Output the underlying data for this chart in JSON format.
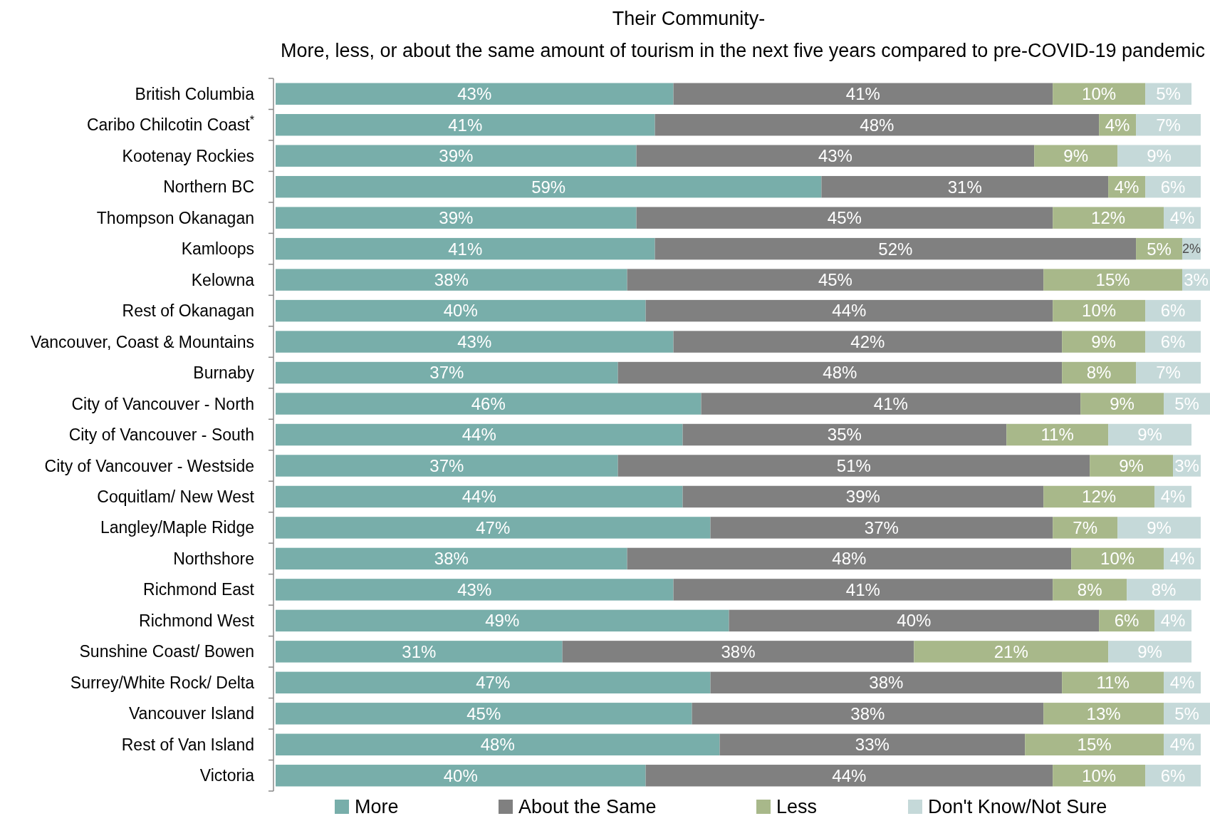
{
  "chart_data": {
    "type": "bar",
    "orientation": "horizontal",
    "stacked": true,
    "legend": "bottom",
    "title": "Their Community-",
    "subtitle": "More, less, or about the same amount of tourism in the next five years compared to pre-COVID-19 pandemic",
    "categories": [
      "British Columbia",
      "Caribo Chilcotin Coast$^{*}$",
      "Kootenay Rockies",
      "Northern BC",
      "Thompson Okanagan",
      "Kamloops",
      "Kelowna",
      "Rest of Okanagan",
      "Vancouver, Coast & Mountains",
      "Burnaby",
      "City of Vancouver - North",
      "City of Vancouver - South",
      "City of Vancouver - Westside",
      "Coquitlam/ New West",
      "Langley/Maple Ridge",
      "Northshore",
      "Richmond East",
      "Richmond West",
      "Sunshine Coast/ Bowen",
      "Surrey/White Rock/ Delta",
      "Vancouver Island",
      "Rest of Van Island",
      "Victoria"
    ],
    "series": [
      {
        "name": "More",
        "color": "#78aeaa",
        "values": [
          43,
          41,
          39,
          59,
          39,
          41,
          38,
          40,
          43,
          37,
          46,
          44,
          37,
          44,
          47,
          38,
          43,
          49,
          31,
          47,
          45,
          48,
          40
        ],
        "value_labels": [
          "43%",
          "41%",
          "39%",
          "59%",
          "39%",
          "41%",
          "38%",
          "40%",
          "43%",
          "37%",
          "46%",
          "44%",
          "37%",
          "44%",
          "47%",
          "38%",
          "43%",
          "49%",
          "31%",
          "47%",
          "45%",
          "48%",
          "40%"
        ]
      },
      {
        "name": "About the Same",
        "color": "#808080",
        "values": [
          41,
          48,
          43,
          31,
          45,
          52,
          45,
          44,
          42,
          48,
          41,
          35,
          51,
          39,
          37,
          48,
          41,
          40,
          38,
          38,
          38,
          33,
          44
        ],
        "value_labels": [
          "41%",
          "48%",
          "43%",
          "31%",
          "45%",
          "52%",
          "45%",
          "44%",
          "42%",
          "48%",
          "41%",
          "35%",
          "51%",
          "39%",
          "37%",
          "48%",
          "41%",
          "40%",
          "38%",
          "38%",
          "38%",
          "33%",
          "44%"
        ]
      },
      {
        "name": "Less",
        "color": "#a8b88a",
        "values": [
          10,
          4,
          9,
          4,
          12,
          5,
          15,
          10,
          9,
          8,
          9,
          11,
          9,
          12,
          7,
          10,
          8,
          6,
          21,
          11,
          13,
          15,
          10
        ],
        "value_labels": [
          "10%",
          "4%",
          "9%",
          "4%",
          "12%",
          "5%",
          "15%",
          "10%",
          "9%",
          "8%",
          "9%",
          "11%",
          "9%",
          "12%",
          "7%",
          "10%",
          "8%",
          "6%",
          "21%",
          "11%",
          "13%",
          "15%",
          "10%"
        ]
      },
      {
        "name": "Don't Know/Not Sure",
        "color": "#c5d9d9",
        "values": [
          5,
          7,
          9,
          6,
          4,
          2,
          3,
          6,
          6,
          7,
          5,
          9,
          3,
          4,
          9,
          4,
          8,
          4,
          9,
          4,
          5,
          4,
          6
        ],
        "value_labels": [
          "5%",
          "7%",
          "9%",
          "6%",
          "4%",
          "2%",
          "3%",
          "6%",
          "6%",
          "7%",
          "5%",
          "9%",
          "3%",
          "4%",
          "9%",
          "4%",
          "8%",
          "4%",
          "9%",
          "4%",
          "5%",
          "4%",
          "6%"
        ]
      }
    ]
  }
}
